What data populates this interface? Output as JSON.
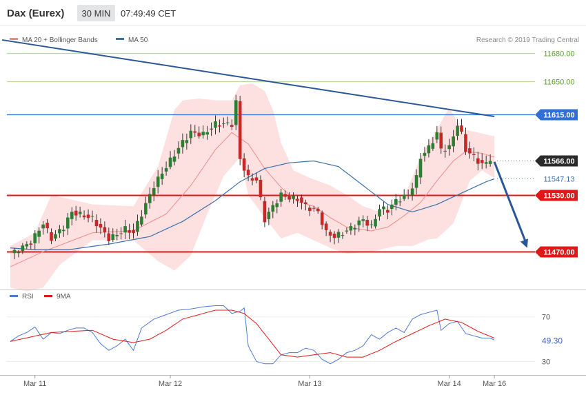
{
  "header": {
    "instrument": "Dax (Eurex)",
    "timeframe": "30 MIN",
    "time": "07:49:49 CET"
  },
  "legend": {
    "bb_label": "MA 20 + Bollinger Bands",
    "ma50_label": "MA 50",
    "copyright": "Research © 2019 Trading Central"
  },
  "colors": {
    "up": "#2e7d32",
    "down": "#c62828",
    "band_fill": "#fde0e0",
    "ma20": "#f08a8a",
    "ma50": "#3a6fa8",
    "trendline": "#2b5797",
    "green_level": "#b5d99c",
    "blue_level": "#2f6fd6",
    "red_level": "#e01818",
    "last_price": "#2b2b2b",
    "rsi": "#4f78d6",
    "rsi_ma": "#e01818"
  },
  "chart_data": [
    {
      "type": "candlestick",
      "ylim": [
        11430,
        11710
      ],
      "n_bars": 117,
      "x_tick_labels": [
        {
          "label": "Mar 11",
          "index": 6
        },
        {
          "label": "Mar 12",
          "index": 39
        },
        {
          "label": "Mar 13",
          "index": 73
        },
        {
          "label": "Mar 14",
          "index": 107
        },
        {
          "label": "Mar 16",
          "index": 118
        }
      ],
      "close_path": [
        [
          0,
          11467
        ],
        [
          5,
          11480
        ],
        [
          8,
          11500
        ],
        [
          10,
          11484
        ],
        [
          13,
          11496
        ],
        [
          15,
          11512
        ],
        [
          18,
          11508
        ],
        [
          20,
          11505
        ],
        [
          24,
          11484
        ],
        [
          26,
          11488
        ],
        [
          28,
          11494
        ],
        [
          30,
          11490
        ],
        [
          32,
          11510
        ],
        [
          35,
          11540
        ],
        [
          38,
          11560
        ],
        [
          42,
          11586
        ],
        [
          44,
          11596
        ],
        [
          47,
          11594
        ],
        [
          50,
          11605
        ],
        [
          54,
          11605
        ],
        [
          55,
          11628
        ],
        [
          56,
          11568
        ],
        [
          58,
          11548
        ],
        [
          60,
          11546
        ],
        [
          62,
          11504
        ],
        [
          64,
          11518
        ],
        [
          66,
          11530
        ],
        [
          68,
          11527
        ],
        [
          70,
          11526
        ],
        [
          72,
          11518
        ],
        [
          75,
          11512
        ],
        [
          77,
          11490
        ],
        [
          79,
          11486
        ],
        [
          82,
          11492
        ],
        [
          86,
          11504
        ],
        [
          88,
          11496
        ],
        [
          90,
          11516
        ],
        [
          92,
          11514
        ],
        [
          94,
          11524
        ],
        [
          97,
          11530
        ],
        [
          99,
          11548
        ],
        [
          100,
          11570
        ],
        [
          102,
          11580
        ],
        [
          104,
          11595
        ],
        [
          105,
          11578
        ],
        [
          107,
          11580
        ],
        [
          109,
          11605
        ],
        [
          110,
          11594
        ],
        [
          111,
          11578
        ],
        [
          113,
          11570
        ],
        [
          115,
          11562
        ],
        [
          117,
          11566
        ],
        [
          118,
          11566
        ]
      ],
      "ma20_path": [
        [
          0,
          11454
        ],
        [
          8,
          11470
        ],
        [
          20,
          11490
        ],
        [
          30,
          11492
        ],
        [
          38,
          11510
        ],
        [
          44,
          11540
        ],
        [
          50,
          11578
        ],
        [
          54,
          11596
        ],
        [
          58,
          11584
        ],
        [
          62,
          11558
        ],
        [
          66,
          11538
        ],
        [
          70,
          11523
        ],
        [
          74,
          11518
        ],
        [
          78,
          11506
        ],
        [
          82,
          11496
        ],
        [
          88,
          11492
        ],
        [
          92,
          11496
        ],
        [
          96,
          11508
        ],
        [
          100,
          11522
        ],
        [
          104,
          11545
        ],
        [
          108,
          11566
        ],
        [
          111,
          11576
        ],
        [
          115,
          11574
        ],
        [
          118,
          11570
        ]
      ],
      "upper_band_path": [
        [
          0,
          11476
        ],
        [
          6,
          11490
        ],
        [
          10,
          11530
        ],
        [
          20,
          11520
        ],
        [
          30,
          11518
        ],
        [
          36,
          11560
        ],
        [
          40,
          11620
        ],
        [
          42,
          11630
        ],
        [
          46,
          11632
        ],
        [
          50,
          11630
        ],
        [
          54,
          11630
        ],
        [
          56,
          11646
        ],
        [
          59,
          11648
        ],
        [
          62,
          11640
        ],
        [
          64,
          11620
        ],
        [
          66,
          11585
        ],
        [
          69,
          11556
        ],
        [
          73,
          11548
        ],
        [
          78,
          11540
        ],
        [
          82,
          11530
        ],
        [
          86,
          11518
        ],
        [
          90,
          11512
        ],
        [
          96,
          11528
        ],
        [
          100,
          11570
        ],
        [
          104,
          11600
        ],
        [
          107,
          11622
        ],
        [
          110,
          11600
        ],
        [
          114,
          11596
        ],
        [
          118,
          11592
        ]
      ],
      "lower_band_path": [
        [
          0,
          11432
        ],
        [
          4,
          11428
        ],
        [
          8,
          11432
        ],
        [
          12,
          11456
        ],
        [
          20,
          11482
        ],
        [
          30,
          11482
        ],
        [
          36,
          11460
        ],
        [
          40,
          11450
        ],
        [
          44,
          11466
        ],
        [
          48,
          11510
        ],
        [
          52,
          11550
        ],
        [
          56,
          11570
        ],
        [
          58,
          11530
        ],
        [
          62,
          11506
        ],
        [
          66,
          11484
        ],
        [
          70,
          11490
        ],
        [
          73,
          11484
        ],
        [
          78,
          11474
        ],
        [
          82,
          11468
        ],
        [
          88,
          11470
        ],
        [
          94,
          11476
        ],
        [
          98,
          11476
        ],
        [
          102,
          11483
        ],
        [
          104,
          11484
        ],
        [
          108,
          11500
        ],
        [
          112,
          11545
        ],
        [
          115,
          11556
        ],
        [
          118,
          11548
        ]
      ],
      "ma50_path": [
        [
          0,
          11474
        ],
        [
          6,
          11472
        ],
        [
          14,
          11472
        ],
        [
          24,
          11478
        ],
        [
          34,
          11486
        ],
        [
          42,
          11502
        ],
        [
          50,
          11524
        ],
        [
          56,
          11544
        ],
        [
          62,
          11558
        ],
        [
          68,
          11564
        ],
        [
          74,
          11566
        ],
        [
          80,
          11560
        ],
        [
          86,
          11540
        ],
        [
          92,
          11520
        ],
        [
          98,
          11512
        ],
        [
          104,
          11520
        ],
        [
          110,
          11532
        ],
        [
          116,
          11544
        ],
        [
          118,
          11547
        ]
      ],
      "trendline": {
        "x1": -2,
        "y1": 11694,
        "x2": 118,
        "y2": 11613
      },
      "forecast_arrow": {
        "x1": 118,
        "y1": 11565,
        "x2": 126,
        "y2": 11474
      },
      "levels": [
        {
          "value": 11680.0,
          "label": "11680.00",
          "style": "green"
        },
        {
          "value": 11650.0,
          "label": "11650.00",
          "style": "green"
        },
        {
          "value": 11615.0,
          "label": "11615.00",
          "style": "blue"
        },
        {
          "value": 11566.0,
          "label": "11566.00",
          "style": "last"
        },
        {
          "value": 11547.13,
          "label": "11547.13",
          "style": "ma50"
        },
        {
          "value": 11530.0,
          "label": "11530.00",
          "style": "red"
        },
        {
          "value": 11470.0,
          "label": "11470.00",
          "style": "red"
        }
      ]
    },
    {
      "type": "line",
      "legend": [
        "RSI",
        "9MA"
      ],
      "ylim": [
        18,
        84
      ],
      "y_ticks": [
        70,
        30
      ],
      "last_value_label": "49.30",
      "rsi_path": [
        [
          0,
          48
        ],
        [
          2,
          53
        ],
        [
          4,
          56
        ],
        [
          6,
          61
        ],
        [
          8,
          50
        ],
        [
          10,
          56
        ],
        [
          12,
          55
        ],
        [
          14,
          58
        ],
        [
          16,
          60
        ],
        [
          18,
          60
        ],
        [
          20,
          56
        ],
        [
          22,
          46
        ],
        [
          24,
          40
        ],
        [
          26,
          44
        ],
        [
          28,
          50
        ],
        [
          30,
          40
        ],
        [
          32,
          60
        ],
        [
          35,
          68
        ],
        [
          38,
          72
        ],
        [
          41,
          76
        ],
        [
          44,
          77
        ],
        [
          47,
          79
        ],
        [
          50,
          80
        ],
        [
          52,
          80
        ],
        [
          54,
          73
        ],
        [
          56,
          75
        ],
        [
          57,
          78
        ],
        [
          58,
          44
        ],
        [
          60,
          30
        ],
        [
          62,
          28
        ],
        [
          64,
          28
        ],
        [
          66,
          36
        ],
        [
          68,
          38
        ],
        [
          70,
          38
        ],
        [
          72,
          42
        ],
        [
          74,
          40
        ],
        [
          76,
          32
        ],
        [
          78,
          28
        ],
        [
          80,
          32
        ],
        [
          82,
          38
        ],
        [
          84,
          40
        ],
        [
          86,
          44
        ],
        [
          88,
          54
        ],
        [
          90,
          50
        ],
        [
          92,
          56
        ],
        [
          94,
          60
        ],
        [
          96,
          56
        ],
        [
          98,
          68
        ],
        [
          100,
          72
        ],
        [
          102,
          74
        ],
        [
          104,
          76
        ],
        [
          105,
          58
        ],
        [
          107,
          64
        ],
        [
          109,
          66
        ],
        [
          111,
          55
        ],
        [
          113,
          53
        ],
        [
          115,
          51
        ],
        [
          117,
          51
        ],
        [
          118,
          49.3
        ]
      ],
      "ma_path": [
        [
          0,
          48
        ],
        [
          5,
          52
        ],
        [
          10,
          56
        ],
        [
          15,
          57
        ],
        [
          20,
          58
        ],
        [
          25,
          50
        ],
        [
          30,
          47
        ],
        [
          34,
          50
        ],
        [
          38,
          58
        ],
        [
          42,
          68
        ],
        [
          46,
          72
        ],
        [
          50,
          76
        ],
        [
          54,
          76
        ],
        [
          57,
          73
        ],
        [
          60,
          64
        ],
        [
          63,
          50
        ],
        [
          66,
          36
        ],
        [
          70,
          34
        ],
        [
          74,
          36
        ],
        [
          78,
          38
        ],
        [
          82,
          34
        ],
        [
          86,
          34
        ],
        [
          90,
          40
        ],
        [
          94,
          48
        ],
        [
          98,
          55
        ],
        [
          102,
          62
        ],
        [
          106,
          68
        ],
        [
          110,
          65
        ],
        [
          114,
          57
        ],
        [
          118,
          51
        ]
      ],
      "x_tick_labels": [
        {
          "label": "Mar 11",
          "index": 6
        },
        {
          "label": "Mar 12",
          "index": 39
        },
        {
          "label": "Mar 13",
          "index": 73
        },
        {
          "label": "Mar 14",
          "index": 107
        },
        {
          "label": "Mar 16",
          "index": 118
        }
      ]
    }
  ]
}
